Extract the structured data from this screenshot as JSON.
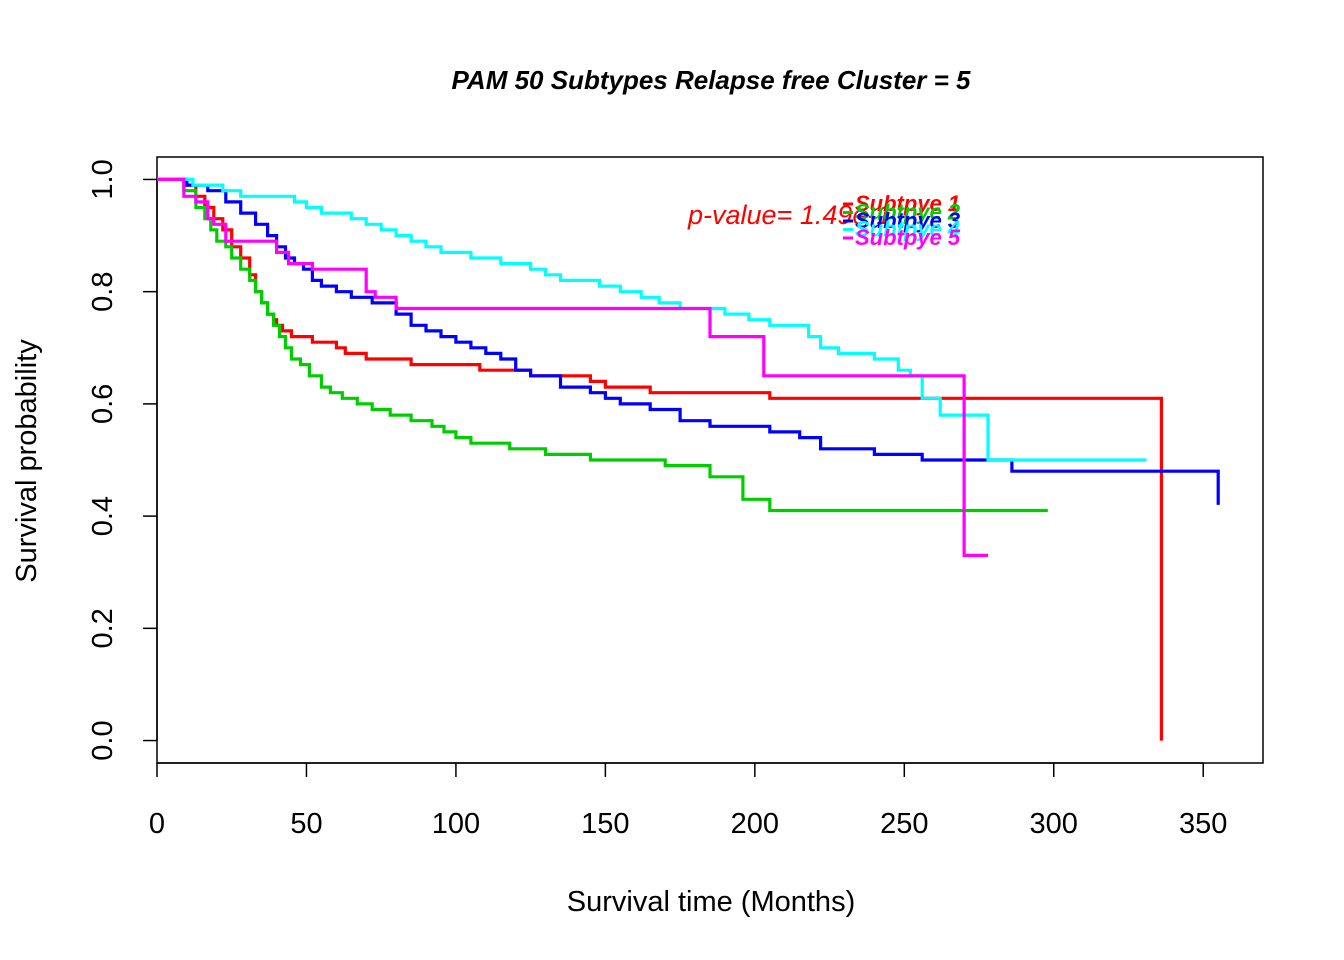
{
  "chart_data": {
    "type": "line",
    "step": true,
    "title": "PAM 50 Subtypes Relapse free Cluster = 5",
    "xlabel": "Survival time (Months)",
    "ylabel": "Survival probability",
    "xlim": [
      0,
      370
    ],
    "ylim": [
      -0.04,
      1.04
    ],
    "xticks": [
      0,
      50,
      100,
      150,
      200,
      250,
      300,
      350
    ],
    "yticks": [
      0.0,
      0.2,
      0.4,
      0.6,
      0.8,
      1.0
    ],
    "xtick_labels": [
      "0",
      "50",
      "100",
      "150",
      "200",
      "250",
      "300",
      "350"
    ],
    "ytick_labels": [
      "0.0",
      "0.2",
      "0.4",
      "0.6",
      "0.8",
      "1.0"
    ],
    "grid": false,
    "annotation": {
      "text": "p-value= 1.49e-1",
      "color": "#ff0000"
    },
    "legend": {
      "placement": "top-right inside",
      "entries": [
        {
          "label": "Subtpye 1",
          "color": "#ff0000"
        },
        {
          "label": "Subtpye 2",
          "color": "#00cd00"
        },
        {
          "label": "Subtpye 3",
          "color": "#0000ff"
        },
        {
          "label": "Subtpye 4",
          "color": "#00ffff"
        },
        {
          "label": "Subtpye 5",
          "color": "#ff00ff"
        }
      ]
    },
    "series": [
      {
        "color": "#ff0000",
        "x": [
          0,
          9,
          13,
          16,
          19,
          22,
          25,
          28,
          31,
          33,
          35,
          37,
          39,
          40,
          42,
          45,
          48,
          52,
          56,
          60,
          63,
          66,
          70,
          75,
          85,
          95,
          108,
          125,
          145,
          150,
          165,
          205,
          230,
          336,
          336
        ],
        "y": [
          1.0,
          0.99,
          0.97,
          0.95,
          0.93,
          0.91,
          0.88,
          0.86,
          0.83,
          0.8,
          0.78,
          0.76,
          0.75,
          0.74,
          0.73,
          0.72,
          0.72,
          0.71,
          0.71,
          0.7,
          0.69,
          0.69,
          0.68,
          0.68,
          0.67,
          0.67,
          0.66,
          0.65,
          0.64,
          0.63,
          0.62,
          0.61,
          0.61,
          0.0,
          0.0
        ]
      },
      {
        "color": "#00cd00",
        "x": [
          0,
          9,
          13,
          16,
          18,
          20,
          23,
          25,
          28,
          31,
          33,
          35,
          37,
          39,
          41,
          43,
          45,
          48,
          51,
          55,
          58,
          62,
          67,
          72,
          78,
          85,
          92,
          96,
          100,
          105,
          118,
          130,
          145,
          170,
          185,
          196,
          205,
          298
        ],
        "y": [
          1.0,
          0.98,
          0.95,
          0.93,
          0.91,
          0.89,
          0.88,
          0.86,
          0.84,
          0.82,
          0.8,
          0.78,
          0.76,
          0.74,
          0.72,
          0.7,
          0.68,
          0.67,
          0.65,
          0.63,
          0.62,
          0.61,
          0.6,
          0.59,
          0.58,
          0.57,
          0.56,
          0.55,
          0.54,
          0.53,
          0.52,
          0.51,
          0.5,
          0.49,
          0.47,
          0.43,
          0.41,
          0.41
        ]
      },
      {
        "color": "#0000ff",
        "x": [
          0,
          10,
          17,
          23,
          28,
          33,
          37,
          40,
          43,
          46,
          49,
          52,
          55,
          60,
          65,
          72,
          80,
          85,
          90,
          95,
          100,
          105,
          110,
          115,
          120,
          125,
          135,
          145,
          150,
          155,
          165,
          175,
          185,
          195,
          205,
          215,
          222,
          240,
          256,
          286,
          355
        ],
        "y": [
          1.0,
          0.99,
          0.98,
          0.96,
          0.94,
          0.92,
          0.9,
          0.88,
          0.86,
          0.85,
          0.84,
          0.82,
          0.81,
          0.8,
          0.79,
          0.78,
          0.76,
          0.74,
          0.73,
          0.72,
          0.71,
          0.7,
          0.69,
          0.68,
          0.66,
          0.65,
          0.63,
          0.62,
          0.61,
          0.6,
          0.59,
          0.57,
          0.56,
          0.56,
          0.55,
          0.54,
          0.52,
          0.51,
          0.5,
          0.48,
          0.42
        ]
      },
      {
        "color": "#00ffff",
        "x": [
          0,
          12,
          22,
          28,
          35,
          46,
          50,
          55,
          60,
          65,
          70,
          75,
          80,
          85,
          90,
          95,
          100,
          105,
          110,
          115,
          120,
          125,
          130,
          135,
          140,
          148,
          155,
          162,
          168,
          175,
          183,
          190,
          198,
          205,
          212,
          218,
          222,
          228,
          240,
          248,
          252,
          256,
          262,
          272,
          278,
          331
        ],
        "y": [
          1.0,
          0.99,
          0.98,
          0.97,
          0.97,
          0.96,
          0.95,
          0.94,
          0.94,
          0.93,
          0.92,
          0.91,
          0.9,
          0.89,
          0.88,
          0.87,
          0.87,
          0.86,
          0.86,
          0.85,
          0.85,
          0.84,
          0.83,
          0.82,
          0.82,
          0.81,
          0.8,
          0.79,
          0.78,
          0.77,
          0.77,
          0.76,
          0.75,
          0.74,
          0.74,
          0.72,
          0.7,
          0.69,
          0.68,
          0.66,
          0.65,
          0.61,
          0.58,
          0.58,
          0.5,
          0.5
        ]
      },
      {
        "color": "#ff00ff",
        "x": [
          0,
          9,
          13,
          17,
          19,
          23,
          30,
          40,
          44,
          52,
          60,
          70,
          73,
          80,
          185,
          195,
          203,
          270,
          278
        ],
        "y": [
          1.0,
          0.97,
          0.96,
          0.93,
          0.92,
          0.89,
          0.89,
          0.87,
          0.85,
          0.84,
          0.84,
          0.8,
          0.79,
          0.77,
          0.72,
          0.72,
          0.65,
          0.33,
          0.33
        ]
      }
    ]
  }
}
